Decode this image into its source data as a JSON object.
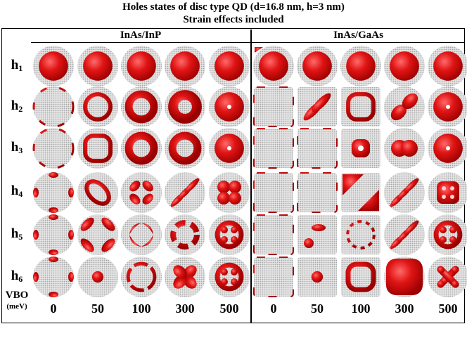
{
  "figure": {
    "title_line1": "Holes states of disc type QD (d=16.8 nm, h=3 nm)",
    "title_line2": "Strain effects included",
    "groups": [
      "InAs/InP",
      "InAs/GaAs"
    ],
    "rows": [
      {
        "label": "h",
        "index": "1"
      },
      {
        "label": "h",
        "index": "2"
      },
      {
        "label": "h",
        "index": "3"
      },
      {
        "label": "h",
        "index": "4"
      },
      {
        "label": "h",
        "index": "5"
      },
      {
        "label": "h",
        "index": "6"
      }
    ],
    "vbo_label": "VBO",
    "vbo_unit": "(meV)",
    "vbo_values": [
      "0",
      "50",
      "100",
      "300",
      "500",
      "0",
      "50",
      "100",
      "300",
      "500"
    ],
    "colors": {
      "state": "#e01414",
      "state_dark": "#9b0000",
      "substrate": "#c8c8c8",
      "background": "#ffffff",
      "lines": "#000000"
    },
    "grid": {
      "group0_x": [
        76,
        139,
        201,
        263,
        326
      ],
      "group1_x": [
        389,
        451,
        513,
        575,
        637
      ],
      "row_y": [
        94,
        152,
        211,
        274,
        334,
        394
      ],
      "cell_radius": 29
    },
    "shapes_group0": [
      [
        "blob",
        "blob",
        "blob",
        "blob",
        "blob"
      ],
      [
        "ring-thin-edge",
        "ring",
        "torus",
        "torus-small-hole",
        "torus-pin"
      ],
      [
        "ring-thin-edge",
        "ring-square",
        "torus",
        "torus",
        "torus-pin"
      ],
      [
        "edge-lobes",
        "ring-skew",
        "quad-lobes",
        "diag-lobes",
        "cluster"
      ],
      [
        "edge-lobes",
        "corner-lobes",
        "crescent-lobes",
        "ring-lobes",
        "lattice"
      ],
      [
        "edge-lobes",
        "dot",
        "cross-ring",
        "clover",
        "lattice"
      ]
    ],
    "shapes_group1": [
      [
        "blob-corner",
        "blob",
        "blob",
        "blob",
        "blob"
      ],
      [
        "edge-square",
        "diag-pair",
        "ring-square",
        "pair",
        "torus-pin"
      ],
      [
        "edge-square",
        "edge-square",
        "torus-sq",
        "pair-lobed",
        "torus-pin"
      ],
      [
        "edge-square",
        "edge-square",
        "corner-tri",
        "diag-lobes",
        "grid-dots"
      ],
      [
        "edge-square",
        "corner-blob",
        "ring-dashed",
        "diag-lobes",
        "lattice"
      ],
      [
        "edge-square",
        "dot",
        "ring-sq",
        "big-sq",
        "x-lattice"
      ]
    ]
  }
}
